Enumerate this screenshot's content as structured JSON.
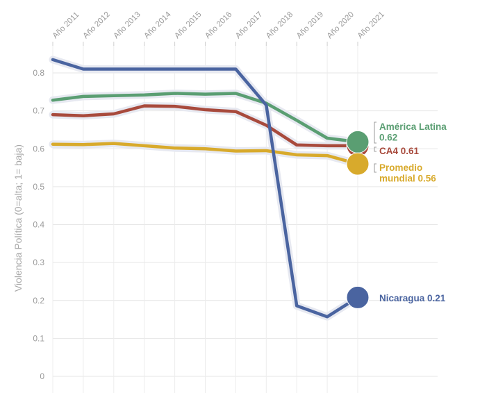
{
  "chart_data": {
    "type": "line",
    "title": "",
    "xlabel": "",
    "ylabel": "Violencia Política (0=alta; 1= baja)",
    "ylim": [
      0,
      0.85
    ],
    "y_ticks": [
      0,
      0.1,
      0.2,
      0.3,
      0.4,
      0.5,
      0.6,
      0.7,
      0.8
    ],
    "y_tick_labels": [
      "0",
      "0.1",
      "0.2",
      "0.3",
      "0.4",
      "0.5",
      "0.6",
      "0.7",
      "0.8"
    ],
    "categories": [
      "Año 2011",
      "Año 2012",
      "Año 2013",
      "Año 2014",
      "Año 2015",
      "Año 2016",
      "Año 2017",
      "Año 2018",
      "Año 2019",
      "Año 2020",
      "Año 2021"
    ],
    "grid": true,
    "legend": "direct labels at line ends",
    "series": [
      {
        "key": "al",
        "name": "América Latina",
        "color": "#5a9e72",
        "values": [
          0.728,
          0.738,
          0.74,
          0.742,
          0.746,
          0.744,
          0.746,
          0.72,
          0.675,
          0.628,
          0.618
        ],
        "end_label_lines": [
          "América Latina",
          "0.62"
        ]
      },
      {
        "key": "ca4",
        "name": "CA4",
        "color": "#a84a3c",
        "values": [
          0.69,
          0.687,
          0.692,
          0.713,
          0.712,
          0.703,
          0.698,
          0.662,
          0.61,
          0.608,
          0.608
        ],
        "end_label_lines": [
          "CA4 0.61"
        ]
      },
      {
        "key": "pm",
        "name": "Promedio mundial",
        "color": "#d8aa2c",
        "values": [
          0.612,
          0.611,
          0.614,
          0.608,
          0.602,
          0.6,
          0.594,
          0.595,
          0.584,
          0.582,
          0.56
        ],
        "end_label_lines": [
          "Promedio",
          "mundial 0.56"
        ]
      },
      {
        "key": "ni",
        "name": "Nicaragua",
        "color": "#4a64a0",
        "values": [
          0.835,
          0.81,
          0.81,
          0.81,
          0.81,
          0.81,
          0.81,
          0.715,
          0.186,
          0.157,
          0.208
        ],
        "end_label_lines": [
          "Nicaragua 0.21"
        ]
      }
    ]
  }
}
